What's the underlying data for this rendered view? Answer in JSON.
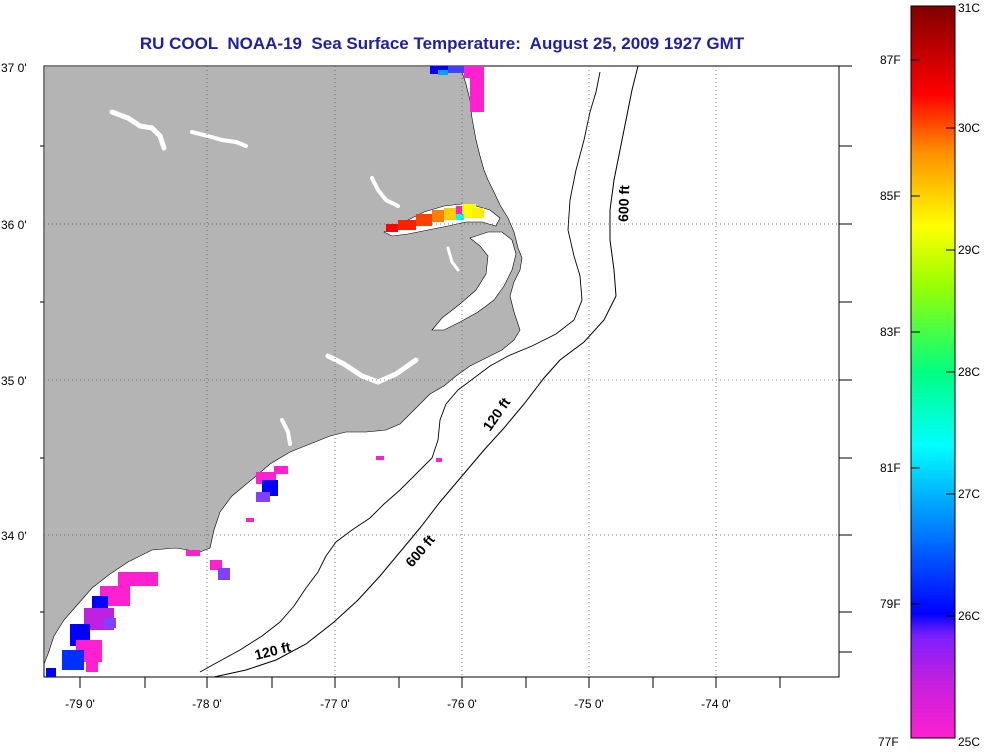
{
  "title": "RU COOL  NOAA-19  Sea Surface Temperature:  August 25, 2009 1927 GMT",
  "map": {
    "lat_labels": [
      "37 0'",
      "36 0'",
      "35 0'",
      "34 0'"
    ],
    "lon_labels": [
      "-79 0'",
      "-78 0'",
      "-77 0'",
      "-76 0'",
      "-75 0'",
      "-74 0'"
    ],
    "lon_range": [
      -79.3,
      -73.0
    ],
    "lat_range": [
      33.1,
      37.0
    ],
    "contours": {
      "c120_label_north": "120 ft",
      "c120_label_south": "120 ft",
      "c600_label_north": "600 ft",
      "c600_label_south": "600 ft"
    },
    "colors": {
      "land": "#b4b4b4",
      "water": "#ffffff",
      "grid": "#444444"
    }
  },
  "colorbar": {
    "celsius_labels": [
      "31C",
      "30C",
      "29C",
      "28C",
      "27C",
      "26C",
      "25C"
    ],
    "fahrenheit_labels": [
      "87F",
      "85F",
      "83F",
      "81F",
      "79F",
      "77F"
    ],
    "range_c": [
      25,
      31
    ],
    "stops": [
      "#ff20d0",
      "#8020ff",
      "#0000ff",
      "#00a0ff",
      "#00ffff",
      "#00ff80",
      "#80ff00",
      "#ffff00",
      "#ff8000",
      "#ff0000",
      "#800000"
    ]
  }
}
